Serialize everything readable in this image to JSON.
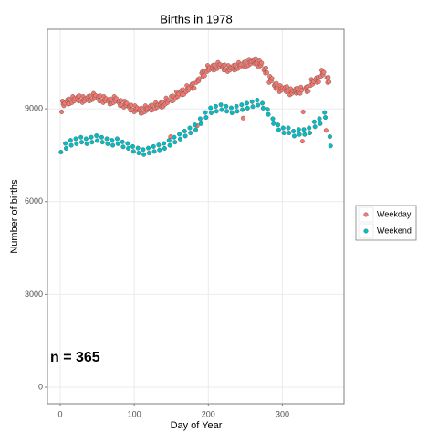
{
  "chart_data": {
    "type": "scatter",
    "title": "Births in 1978",
    "xlabel": "Day of Year",
    "ylabel": "Number of births",
    "annotation": "n =  365",
    "xlim": [
      -17.2,
      383.2
    ],
    "xticks": [
      0,
      100,
      200,
      300
    ],
    "ylim": [
      -530,
      11570
    ],
    "yticks": [
      0,
      3000,
      6000,
      9000
    ],
    "grid": true,
    "legend": "right",
    "series": [
      {
        "name": "Weekday",
        "color": "#F8766D",
        "x": [
          2,
          3,
          4,
          5,
          6,
          9,
          10,
          11,
          12,
          13,
          16,
          17,
          18,
          19,
          20,
          23,
          24,
          25,
          26,
          27,
          30,
          31,
          32,
          33,
          34,
          37,
          38,
          39,
          40,
          41,
          44,
          45,
          46,
          47,
          48,
          51,
          52,
          53,
          54,
          55,
          58,
          59,
          60,
          61,
          62,
          65,
          66,
          67,
          68,
          69,
          72,
          73,
          74,
          75,
          76,
          79,
          80,
          81,
          82,
          83,
          86,
          87,
          88,
          89,
          90,
          93,
          94,
          95,
          96,
          97,
          100,
          101,
          102,
          103,
          104,
          107,
          108,
          109,
          110,
          111,
          114,
          115,
          116,
          117,
          118,
          121,
          122,
          123,
          124,
          125,
          128,
          129,
          130,
          131,
          132,
          135,
          136,
          137,
          138,
          139,
          142,
          143,
          144,
          145,
          146,
          149,
          150,
          151,
          152,
          153,
          156,
          157,
          158,
          159,
          160,
          163,
          164,
          165,
          166,
          167,
          170,
          171,
          172,
          173,
          174,
          177,
          178,
          179,
          180,
          181,
          184,
          185,
          186,
          187,
          188,
          191,
          192,
          193,
          194,
          195,
          198,
          199,
          200,
          201,
          202,
          205,
          206,
          207,
          208,
          209,
          212,
          213,
          214,
          215,
          216,
          219,
          220,
          221,
          222,
          223,
          226,
          227,
          228,
          229,
          230,
          233,
          234,
          235,
          236,
          237,
          240,
          241,
          242,
          243,
          244,
          247,
          248,
          249,
          250,
          251,
          254,
          255,
          256,
          257,
          258,
          261,
          262,
          263,
          264,
          265,
          268,
          269,
          270,
          271,
          272,
          275,
          276,
          277,
          278,
          279,
          282,
          283,
          284,
          285,
          286,
          289,
          290,
          291,
          292,
          293,
          296,
          297,
          298,
          299,
          300,
          303,
          304,
          305,
          306,
          307,
          310,
          311,
          312,
          313,
          314,
          317,
          318,
          319,
          320,
          321,
          324,
          325,
          326,
          327,
          328,
          331,
          332,
          333,
          334,
          335,
          338,
          339,
          340,
          341,
          342,
          345,
          346,
          347,
          348,
          349,
          352,
          353,
          354,
          355,
          356,
          359,
          360,
          361,
          362,
          363
        ],
        "values": [
          8900,
          9250,
          9150,
          9100,
          9180,
          9250,
          9300,
          9150,
          9320,
          9170,
          9200,
          9400,
          9300,
          9250,
          9330,
          9350,
          9400,
          9250,
          9420,
          9270,
          9200,
          9400,
          9300,
          9250,
          9330,
          9350,
          9400,
          9250,
          9420,
          9270,
          9300,
          9500,
          9400,
          9350,
          9430,
          9350,
          9400,
          9250,
          9420,
          9270,
          9200,
          9400,
          9300,
          9250,
          9330,
          9250,
          9300,
          9150,
          9320,
          9170,
          9200,
          9400,
          9300,
          9250,
          9330,
          9200,
          9250,
          9100,
          9270,
          9120,
          9050,
          9250,
          9150,
          9100,
          9180,
          9050,
          9100,
          8950,
          9120,
          8970,
          8900,
          9100,
          9000,
          8950,
          9030,
          8950,
          9000,
          8850,
          9020,
          8870,
          8900,
          9100,
          9000,
          8950,
          9030,
          9050,
          9100,
          8950,
          9120,
          8970,
          9000,
          9200,
          9100,
          9050,
          9130,
          9150,
          9200,
          9050,
          9220,
          9070,
          9150,
          9350,
          9250,
          9200,
          9280,
          8100,
          9400,
          9250,
          9420,
          9270,
          9350,
          9550,
          9450,
          9400,
          9480,
          9550,
          9600,
          9450,
          9620,
          9470,
          9550,
          9750,
          9650,
          9600,
          9680,
          9750,
          9800,
          9650,
          9820,
          9670,
          9850,
          8450,
          9950,
          9900,
          9980,
          10150,
          10200,
          10050,
          10220,
          10070,
          10200,
          10400,
          10300,
          10250,
          10330,
          10350,
          10400,
          10250,
          10420,
          10270,
          10300,
          10500,
          10400,
          10350,
          10430,
          10350,
          10400,
          10250,
          10420,
          10270,
          10200,
          10400,
          10300,
          10250,
          10330,
          10350,
          10400,
          10250,
          10420,
          10270,
          10300,
          10500,
          10400,
          10350,
          10430,
          8700,
          10500,
          10350,
          10520,
          10370,
          10400,
          10600,
          10500,
          10450,
          10530,
          10550,
          10600,
          10450,
          10620,
          10470,
          10350,
          10550,
          10450,
          10400,
          10480,
          10250,
          10300,
          10150,
          10320,
          10170,
          9850,
          10050,
          9950,
          9900,
          9980,
          9750,
          9800,
          9650,
          9820,
          9670,
          9550,
          9750,
          9650,
          9600,
          9680,
          9650,
          9700,
          9550,
          9720,
          9570,
          9450,
          9650,
          9550,
          9500,
          9580,
          9600,
          9650,
          9500,
          9670,
          9520,
          9500,
          9700,
          9600,
          7950,
          8900,
          9650,
          9700,
          9550,
          9720,
          9570,
          9750,
          9950,
          9850,
          9800,
          9880,
          9950,
          10000,
          9850,
          10020,
          9870,
          10050,
          10250,
          10150,
          10100,
          10180,
          8300,
          10000,
          9850,
          10020,
          9870
        ]
      },
      {
        "name": "Weekend",
        "color": "#00BFC4",
        "x": [
          1,
          7,
          8,
          14,
          15,
          21,
          22,
          28,
          29,
          35,
          36,
          42,
          43,
          49,
          50,
          56,
          57,
          63,
          64,
          70,
          71,
          77,
          78,
          84,
          85,
          91,
          92,
          98,
          99,
          105,
          106,
          112,
          113,
          119,
          120,
          126,
          127,
          133,
          134,
          140,
          141,
          147,
          148,
          154,
          155,
          161,
          162,
          168,
          169,
          175,
          176,
          182,
          183,
          189,
          190,
          196,
          197,
          203,
          204,
          210,
          211,
          217,
          218,
          224,
          225,
          231,
          232,
          238,
          239,
          245,
          246,
          252,
          253,
          259,
          260,
          266,
          267,
          273,
          274,
          280,
          281,
          287,
          288,
          294,
          295,
          301,
          302,
          308,
          309,
          315,
          316,
          322,
          323,
          329,
          330,
          336,
          337,
          343,
          344,
          350,
          351,
          357,
          358,
          364,
          365
        ],
        "values": [
          7600,
          7880,
          7720,
          7980,
          7820,
          8030,
          7870,
          8080,
          7920,
          8030,
          7870,
          8080,
          7920,
          8130,
          7970,
          8080,
          7920,
          8030,
          7870,
          7980,
          7820,
          8030,
          7870,
          7930,
          7770,
          7880,
          7720,
          7780,
          7620,
          7730,
          7570,
          7680,
          7520,
          7730,
          7570,
          7780,
          7620,
          7830,
          7670,
          7880,
          7720,
          7980,
          7820,
          8080,
          7920,
          8180,
          8020,
          8280,
          8120,
          8380,
          8220,
          8480,
          8320,
          8680,
          8520,
          8880,
          8720,
          9030,
          8870,
          9080,
          8920,
          9130,
          8970,
          9080,
          8920,
          9030,
          8870,
          9080,
          8920,
          9130,
          8970,
          9180,
          9020,
          9230,
          9070,
          9280,
          9120,
          9180,
          9020,
          8980,
          8820,
          8680,
          8520,
          8480,
          8320,
          8380,
          8220,
          8380,
          8220,
          8280,
          8120,
          8330,
          8170,
          8330,
          8170,
          8380,
          8220,
          8580,
          8420,
          8680,
          8520,
          8880,
          8720,
          8100,
          7800
        ]
      }
    ]
  }
}
